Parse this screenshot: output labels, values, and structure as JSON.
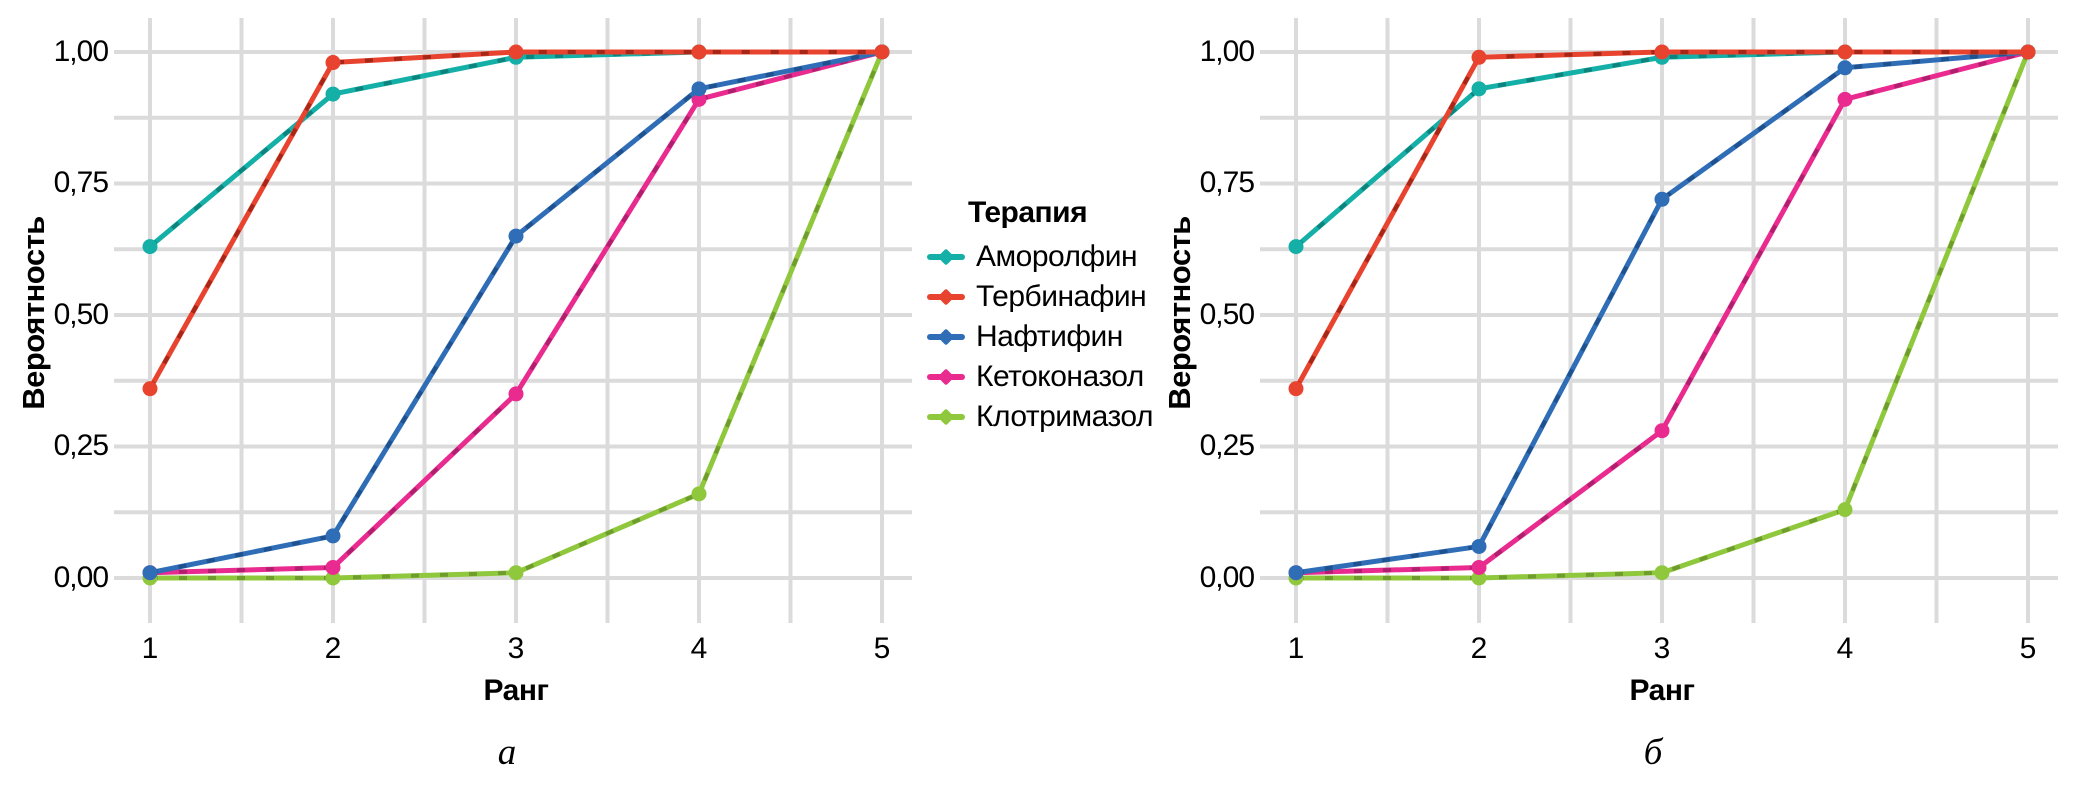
{
  "style": {
    "background": "#FFFFFF",
    "grid_color": "#DBDBDB",
    "text_color": "#000000"
  },
  "axes": {
    "y_label": "Вероятность",
    "x_label": "Ранг",
    "y_ticks": [
      "1,00",
      "0,75",
      "0,50",
      "0,25",
      "0,00"
    ],
    "x_ticks": [
      "1",
      "2",
      "3",
      "4",
      "5"
    ]
  },
  "legend": {
    "title": "Терапия",
    "items": [
      {
        "label": "Аморолфин",
        "color": "#14AFA6"
      },
      {
        "label": "Тербинафин",
        "color": "#E8432E"
      },
      {
        "label": "Нафтифин",
        "color": "#2F6EB6"
      },
      {
        "label": "Кетоконазол",
        "color": "#E92A8F"
      },
      {
        "label": "Клотримазол",
        "color": "#90C83D"
      }
    ]
  },
  "chart_data": [
    {
      "type": "line",
      "subplot_label": "а",
      "xlabel": "Ранг",
      "ylabel": "Вероятность",
      "x": [
        1,
        2,
        3,
        4,
        5
      ],
      "xlim": [
        0.8,
        5.2
      ],
      "ylim": [
        -0.05,
        1.05
      ],
      "grid": "major+minor",
      "legend_position": "right",
      "series": [
        {
          "name": "Аморолфин",
          "color": "#14AFA6",
          "dash_color": "#0B7E78",
          "values": [
            0.63,
            0.92,
            0.99,
            1.0,
            1.0
          ]
        },
        {
          "name": "Тербинафин",
          "color": "#E8432E",
          "dash_color": "#9E2415",
          "values": [
            0.36,
            0.98,
            1.0,
            1.0,
            1.0
          ]
        },
        {
          "name": "Нафтифин",
          "color": "#2F6EB6",
          "dash_color": "#1D4E8A",
          "values": [
            0.01,
            0.08,
            0.65,
            0.93,
            1.0
          ]
        },
        {
          "name": "Кетоконазол",
          "color": "#E92A8F",
          "dash_color": "#A81E69",
          "values": [
            0.01,
            0.02,
            0.35,
            0.91,
            1.0
          ]
        },
        {
          "name": "Клотримазол",
          "color": "#90C83D",
          "dash_color": "#6B982B",
          "values": [
            0.0,
            0.0,
            0.01,
            0.16,
            1.0
          ]
        }
      ]
    },
    {
      "type": "line",
      "subplot_label": "б",
      "xlabel": "Ранг",
      "ylabel": "Вероятность",
      "x": [
        1,
        2,
        3,
        4,
        5
      ],
      "xlim": [
        0.8,
        5.2
      ],
      "ylim": [
        -0.05,
        1.05
      ],
      "grid": "major+minor",
      "legend_position": "none",
      "series": [
        {
          "name": "Аморолфин",
          "color": "#14AFA6",
          "dash_color": "#0B7E78",
          "values": [
            0.63,
            0.93,
            0.99,
            1.0,
            1.0
          ]
        },
        {
          "name": "Тербинафин",
          "color": "#E8432E",
          "dash_color": "#9E2415",
          "values": [
            0.36,
            0.99,
            1.0,
            1.0,
            1.0
          ]
        },
        {
          "name": "Нафтифин",
          "color": "#2F6EB6",
          "dash_color": "#1D4E8A",
          "values": [
            0.01,
            0.06,
            0.72,
            0.97,
            1.0
          ]
        },
        {
          "name": "Кетоконазол",
          "color": "#E92A8F",
          "dash_color": "#A81E69",
          "values": [
            0.01,
            0.02,
            0.28,
            0.91,
            1.0
          ]
        },
        {
          "name": "Клотримазол",
          "color": "#90C83D",
          "dash_color": "#6B982B",
          "values": [
            0.0,
            0.0,
            0.01,
            0.13,
            1.0
          ]
        }
      ]
    }
  ]
}
